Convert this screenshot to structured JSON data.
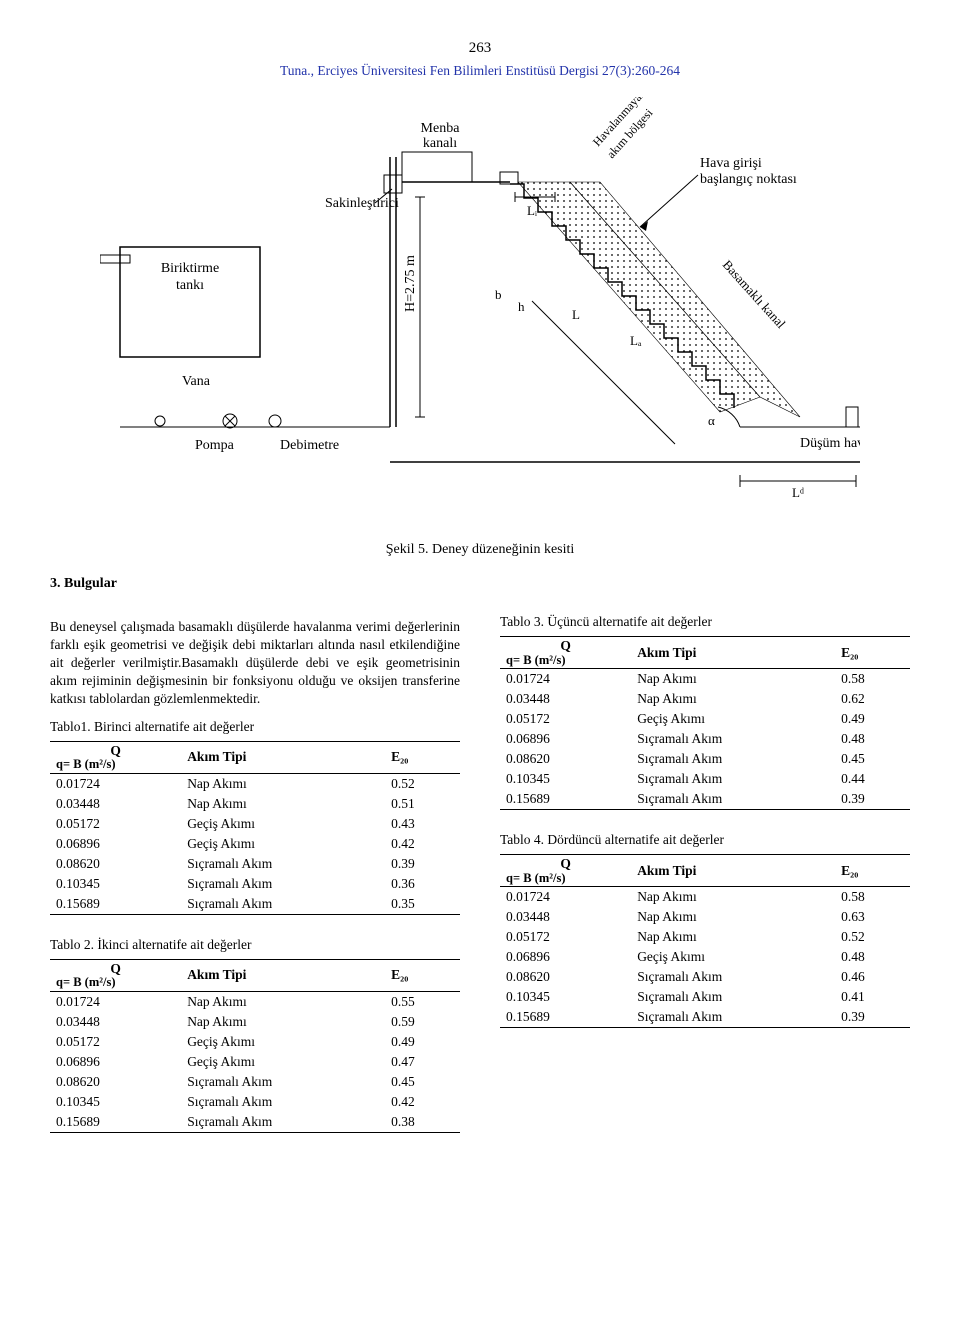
{
  "page_number": "263",
  "journal": "Tuna., Erciyes Üniversitesi Fen Bilimleri Enstitüsü Dergisi 27(3):260-264",
  "figure": {
    "caption": "Şekil 5. Deney düzeneğinin kesiti",
    "labels": {
      "biriktirme": "Biriktirme\ntankı",
      "vana": "Vana",
      "pompa": "Pompa",
      "debimetre": "Debimetre",
      "sakinlestirici": "Sakinleştirici",
      "menba": "Menba\nkanalı",
      "h_dim": "H=2.75 m",
      "b": "b",
      "h": "h",
      "Li": "Lᵢ",
      "L": "L",
      "La": "Lₐ",
      "havalanmayan": "Havalanmayan\nakım bölgesi",
      "hava_girisi": "Hava girişi\nbaşlangıç noktası",
      "basamakli": "Basamaklı kanal",
      "alpha": "α",
      "dusum": "Düşüm havuzu",
      "Ld": "L_d"
    },
    "colors": {
      "stroke": "#000000",
      "fill_pattern": "#000000",
      "bg": "#ffffff"
    }
  },
  "section_title": "3. Bulgular",
  "para1": "Bu deneysel çalışmada basamaklı düşülerde havalanma verimi değerlerinin farklı eşik geometrisi ve değişik debi miktarları altında nasıl etkilendiğine ait değerler verilmiştir.Basamaklı düşülerde debi ve eşik geometrisinin akım rejiminin değişmesinin bir fonksiyonu olduğu ve oksijen transferine katkısı tablolardan gözlemlenmektedir.",
  "table_header": {
    "q_label_top": "Q",
    "q_label_bot": "q= B (m²/s)",
    "akim_tipi": "Akım Tipi",
    "e20": "E₂₀"
  },
  "tables": {
    "t1": {
      "title": "Tablo1. Birinci alternatife ait değerler",
      "rows": [
        [
          "0.01724",
          "Nap Akımı",
          "0.52"
        ],
        [
          "0.03448",
          "Nap Akımı",
          "0.51"
        ],
        [
          "0.05172",
          "Geçiş Akımı",
          "0.43"
        ],
        [
          "0.06896",
          "Geçiş Akımı",
          "0.42"
        ],
        [
          "0.08620",
          "Sıçramalı Akım",
          "0.39"
        ],
        [
          "0.10345",
          "Sıçramalı Akım",
          "0.36"
        ],
        [
          "0.15689",
          "Sıçramalı Akım",
          "0.35"
        ]
      ]
    },
    "t2": {
      "title": "Tablo 2. İkinci alternatife ait değerler",
      "rows": [
        [
          "0.01724",
          "Nap Akımı",
          "0.55"
        ],
        [
          "0.03448",
          "Nap Akımı",
          "0.59"
        ],
        [
          "0.05172",
          "Geçiş Akımı",
          "0.49"
        ],
        [
          "0.06896",
          "Geçiş Akımı",
          "0.47"
        ],
        [
          "0.08620",
          "Sıçramalı Akım",
          "0.45"
        ],
        [
          "0.10345",
          "Sıçramalı Akım",
          "0.42"
        ],
        [
          "0.15689",
          "Sıçramalı Akım",
          "0.38"
        ]
      ]
    },
    "t3": {
      "title": "Tablo 3. Üçüncü alternatife ait değerler",
      "rows": [
        [
          "0.01724",
          "Nap Akımı",
          "0.58"
        ],
        [
          "0.03448",
          "Nap Akımı",
          "0.62"
        ],
        [
          "0.05172",
          "Geçiş Akımı",
          "0.49"
        ],
        [
          "0.06896",
          "Sıçramalı Akım",
          "0.48"
        ],
        [
          "0.08620",
          "Sıçramalı Akım",
          "0.45"
        ],
        [
          "0.10345",
          "Sıçramalı Akım",
          "0.44"
        ],
        [
          "0.15689",
          "Sıçramalı Akım",
          "0.39"
        ]
      ]
    },
    "t4": {
      "title": "Tablo 4. Dördüncü alternatife ait değerler",
      "rows": [
        [
          "0.01724",
          "Nap Akımı",
          "0.58"
        ],
        [
          "0.03448",
          "Nap Akımı",
          "0.63"
        ],
        [
          "0.05172",
          "Nap Akımı",
          "0.52"
        ],
        [
          "0.06896",
          "Geçiş Akımı",
          "0.48"
        ],
        [
          "0.08620",
          "Sıçramalı Akım",
          "0.46"
        ],
        [
          "0.10345",
          "Sıçramalı Akım",
          "0.41"
        ],
        [
          "0.15689",
          "Sıçramalı Akım",
          "0.39"
        ]
      ]
    }
  }
}
